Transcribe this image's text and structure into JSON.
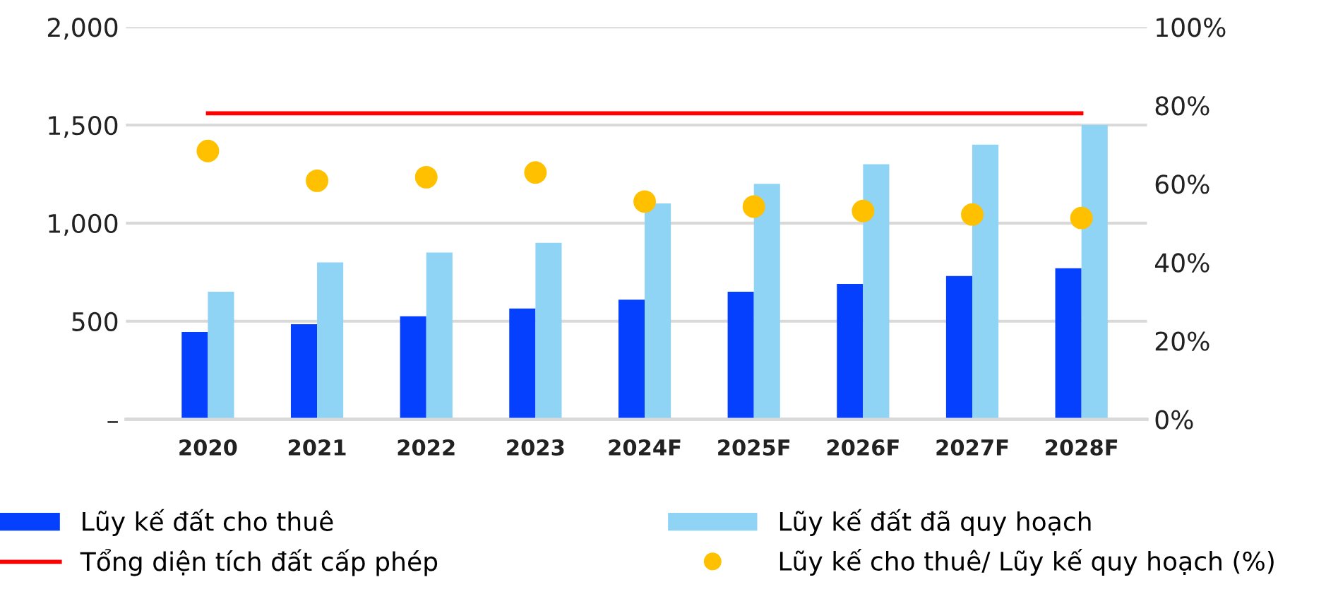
{
  "chart_data": {
    "type": "bar",
    "categories": [
      "2020",
      "2021",
      "2022",
      "2023",
      "2024F",
      "2025F",
      "2026F",
      "2027F",
      "2028F"
    ],
    "series": [
      {
        "name": "Lũy kế đất cho thuê",
        "color": "#0540ff",
        "values": [
          445,
          485,
          525,
          565,
          610,
          650,
          690,
          730,
          770
        ]
      },
      {
        "name": "Lũy kế đất đã quy hoạch",
        "color": "#8fd3f5",
        "values": [
          650,
          800,
          850,
          900,
          1100,
          1200,
          1300,
          1400,
          1500
        ]
      },
      {
        "name": "Tổng diện tích đất cấp phép",
        "type": "line",
        "color": "#ff0000",
        "marker": "none",
        "values": [
          1560,
          1560,
          1560,
          1560,
          1560,
          1560,
          1560,
          1560,
          1560
        ]
      },
      {
        "name": "Lũy kế cho thuê/ Lũy kế quy hoạch (%)",
        "type": "scatter",
        "axis": "y2",
        "color": "#ffc000",
        "marker": "circle",
        "values": [
          68.4,
          60.8,
          61.7,
          62.9,
          55.5,
          54.2,
          53.1,
          52.2,
          51.3
        ]
      }
    ],
    "ylim": [
      0,
      2000
    ],
    "yticks": [
      {
        "value": 0,
        "label": "–"
      },
      {
        "value": 500,
        "label": "500"
      },
      {
        "value": 1000,
        "label": "1,000"
      },
      {
        "value": 1500,
        "label": "1,500"
      },
      {
        "value": 2000,
        "label": "2,000"
      }
    ],
    "y2lim": [
      0,
      100
    ],
    "y2ticks": [
      {
        "value": 0,
        "label": "0%"
      },
      {
        "value": 20,
        "label": "20%"
      },
      {
        "value": 40,
        "label": "40%"
      },
      {
        "value": 60,
        "label": "60%"
      },
      {
        "value": 80,
        "label": "80%"
      },
      {
        "value": 100,
        "label": "100%"
      }
    ],
    "grid": "y",
    "legend": "bottom"
  }
}
